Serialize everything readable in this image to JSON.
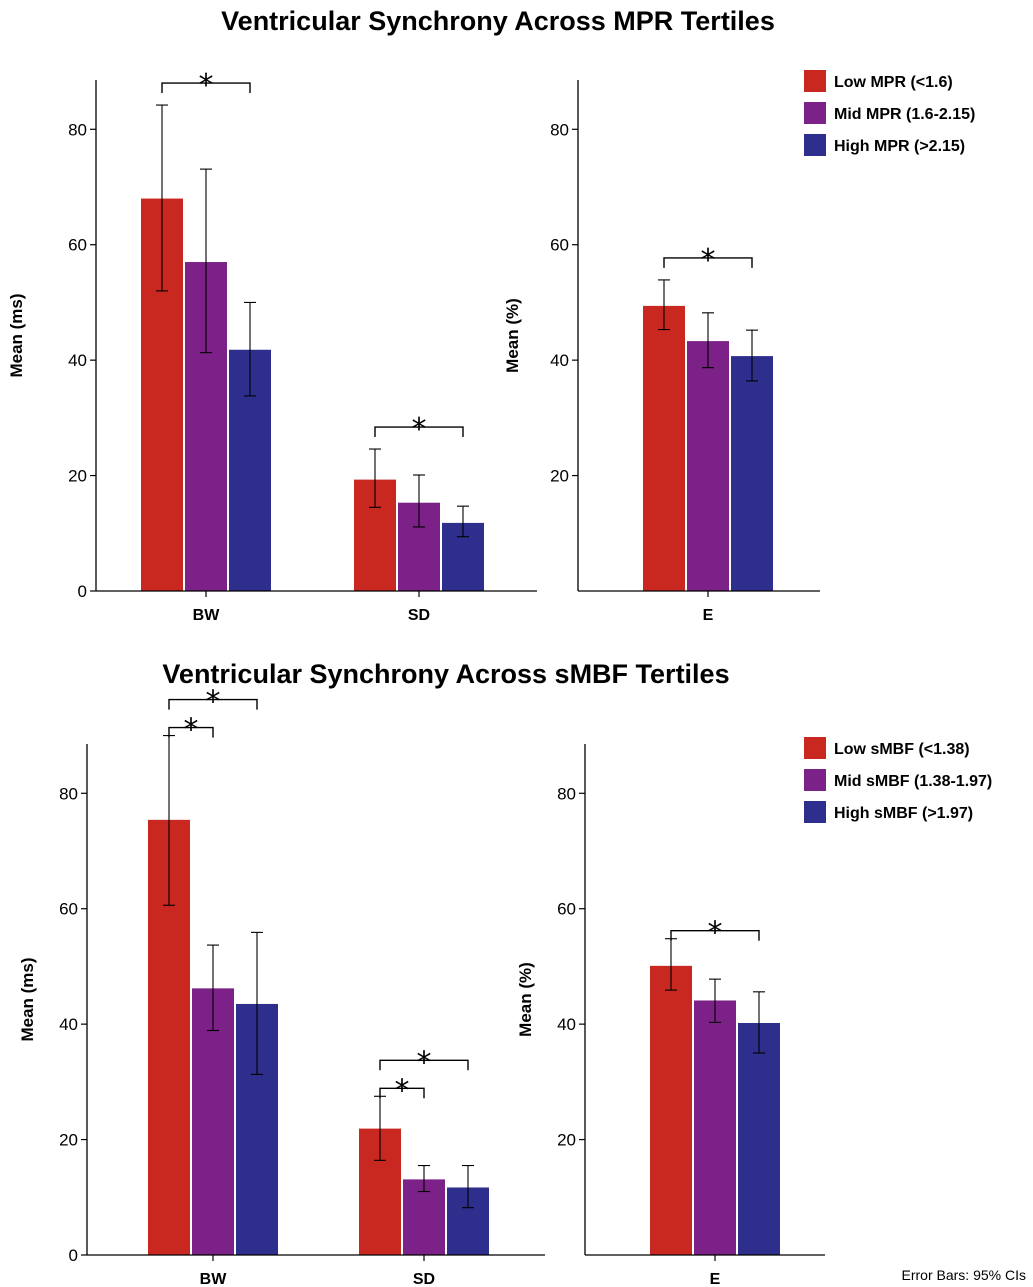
{
  "chart_data": [
    {
      "type": "bar",
      "title": "Ventricular Synchrony Across MPR Tertiles",
      "colors": [
        "#c8281f",
        "#7b2187",
        "#2e2e8c"
      ],
      "legend": {
        "position": "top-right",
        "entries": [
          "Low MPR (<1.6)",
          "Mid MPR  (1.6-2.15)",
          "High MPR (>2.15)"
        ]
      },
      "panels": [
        {
          "ylabel": "Mean (ms)",
          "ylim": [
            0,
            88
          ],
          "yticks": [
            "0",
            "20",
            "40",
            "60",
            "80"
          ],
          "categories": [
            "BW",
            "SD"
          ],
          "series": [
            {
              "name": "Low MPR (<1.6)",
              "values": [
                68,
                19.3
              ],
              "ci_low": [
                52,
                14.5
              ],
              "ci_high": [
                84.2,
                24.6
              ]
            },
            {
              "name": "Mid MPR  (1.6-2.15)",
              "values": [
                57,
                15.3
              ],
              "ci_low": [
                41.3,
                11.1
              ],
              "ci_high": [
                73.1,
                20.1
              ]
            },
            {
              "name": "High MPR (>2.15)",
              "values": [
                41.8,
                11.8
              ],
              "ci_low": [
                33.8,
                9.4
              ],
              "ci_high": [
                50,
                14.7
              ]
            }
          ],
          "significance": [
            {
              "category": 0,
              "from": 0,
              "to": 2,
              "label": "*"
            },
            {
              "category": 1,
              "from": 0,
              "to": 2,
              "label": "*"
            }
          ]
        },
        {
          "ylabel": "Mean (%)",
          "ylim": [
            0,
            88
          ],
          "yticks": [
            "20",
            "40",
            "60",
            "80"
          ],
          "categories": [
            "E"
          ],
          "series": [
            {
              "name": "Low MPR (<1.6)",
              "values": [
                49.4
              ],
              "ci_low": [
                45.3
              ],
              "ci_high": [
                53.9
              ]
            },
            {
              "name": "Mid MPR  (1.6-2.15)",
              "values": [
                43.3
              ],
              "ci_low": [
                38.7
              ],
              "ci_high": [
                48.2
              ]
            },
            {
              "name": "High MPR (>2.15)",
              "values": [
                40.7
              ],
              "ci_low": [
                36.4
              ],
              "ci_high": [
                45.2
              ]
            }
          ],
          "significance": [
            {
              "category": 0,
              "from": 0,
              "to": 2,
              "label": "*"
            }
          ]
        }
      ]
    },
    {
      "type": "bar",
      "title": "Ventricular Synchrony Across sMBF Tertiles",
      "colors": [
        "#c8281f",
        "#7b2187",
        "#2e2e8c"
      ],
      "legend": {
        "position": "top-right",
        "entries": [
          "Low sMBF (<1.38)",
          "Mid sMBF (1.38-1.97)",
          "High sMBF (>1.97)"
        ]
      },
      "panels": [
        {
          "ylabel": "Mean (ms)",
          "ylim": [
            0,
            88
          ],
          "yticks": [
            "0",
            "20",
            "40",
            "60",
            "80"
          ],
          "categories": [
            "BW",
            "SD"
          ],
          "series": [
            {
              "name": "Low sMBF (<1.38)",
              "values": [
                75.4,
                21.9
              ],
              "ci_low": [
                60.6,
                16.4
              ],
              "ci_high": [
                90,
                27.5
              ]
            },
            {
              "name": "Mid sMBF (1.38-1.97)",
              "values": [
                46.2,
                13.1
              ],
              "ci_low": [
                38.9,
                11
              ],
              "ci_high": [
                53.7,
                15.5
              ]
            },
            {
              "name": "High sMBF (>1.97)",
              "values": [
                43.5,
                11.7
              ],
              "ci_low": [
                31.3,
                8.2
              ],
              "ci_high": [
                55.9,
                15.5
              ]
            }
          ],
          "significance": [
            {
              "category": 0,
              "from": 0,
              "to": 1,
              "label": "*",
              "level": 0
            },
            {
              "category": 0,
              "from": 0,
              "to": 2,
              "label": "*",
              "level": 1
            },
            {
              "category": 1,
              "from": 0,
              "to": 1,
              "label": "*",
              "level": 0
            },
            {
              "category": 1,
              "from": 0,
              "to": 2,
              "label": "*",
              "level": 1
            }
          ]
        },
        {
          "ylabel": "Mean (%)",
          "ylim": [
            0,
            88
          ],
          "yticks": [
            "20",
            "40",
            "60",
            "80"
          ],
          "categories": [
            "E"
          ],
          "series": [
            {
              "name": "Low sMBF (<1.38)",
              "values": [
                50.1
              ],
              "ci_low": [
                45.9
              ],
              "ci_high": [
                54.8
              ]
            },
            {
              "name": "Mid sMBF (1.38-1.97)",
              "values": [
                44.1
              ],
              "ci_low": [
                40.3
              ],
              "ci_high": [
                47.8
              ]
            },
            {
              "name": "High sMBF (>1.97)",
              "values": [
                40.2
              ],
              "ci_low": [
                35
              ],
              "ci_high": [
                45.6
              ]
            }
          ],
          "significance": [
            {
              "category": 0,
              "from": 0,
              "to": 2,
              "label": "*"
            }
          ]
        }
      ]
    }
  ],
  "footnote": "Error Bars: 95% CIs"
}
